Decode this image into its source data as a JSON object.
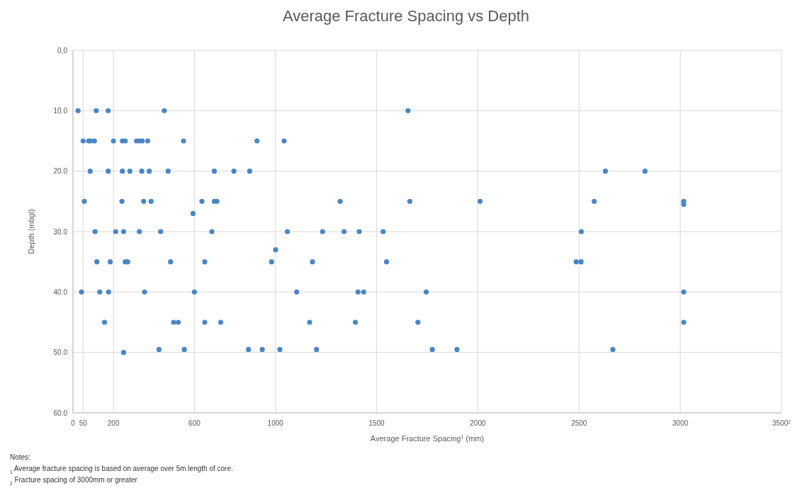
{
  "chart_data": {
    "type": "scatter",
    "title": "Average Fracture Spacing vs Depth",
    "xlabel": "Average Fracture Spacing$^{1}$ (mm)",
    "ylabel": "Depth (mbgl)",
    "annotations": [
      "Notes:",
      "$_{1}$ Average fracture spacing is based on average over 5m length of core.",
      "$_{2}$ Fracture spacing of 3000mm or greater"
    ],
    "xlim": [
      0,
      3500
    ],
    "xticks": [
      0,
      200,
      50,
      600,
      1000,
      1500,
      2000,
      2500,
      3000,
      {
        "value": 3500,
        "label": "3500$^{2}$"
      }
    ],
    "ylim": [
      60,
      0
    ],
    "yticks": [
      {
        "value": 0,
        "label": "0,0"
      },
      {
        "value": 10,
        "label": "10.0"
      },
      {
        "value": 20,
        "label": "20.0"
      },
      {
        "value": 30,
        "label": "30.0"
      },
      {
        "value": 40,
        "label": "40.0"
      },
      {
        "value": 50,
        "label": "50.0"
      },
      {
        "value": 60,
        "label": "60.0"
      }
    ],
    "grid": true,
    "marker": "circle",
    "series": [
      {
        "color": "#4a86c5",
        "x": [
          25,
          115,
          174,
          451,
          1655,
          50,
          77,
          86,
          106,
          200,
          244,
          258,
          314,
          328,
          342,
          369,
          546,
          909,
          1043,
          85,
          174,
          244,
          281,
          340,
          377,
          470,
          698,
          795,
          873,
          2630,
          2826,
          56,
          242,
          349,
          386,
          637,
          698,
          711,
          1320,
          1664,
          2011,
          2575,
          3017,
          3017,
          593,
          109,
          211,
          250,
          328,
          433,
          686,
          1059,
          1233,
          1339,
          1414,
          1532,
          2511,
          1001,
          118,
          184,
          258,
          270,
          482,
          651,
          981,
          1183,
          1549,
          2486,
          2510,
          42,
          132,
          176,
          354,
          600,
          1105,
          1408,
          1436,
          1745,
          3017,
          156,
          497,
          520,
          651,
          730,
          1169,
          1395,
          1704,
          3017,
          425,
          550,
          867,
          935,
          1022,
          1203,
          1775,
          1897,
          2667,
          250
        ],
        "values": [
          10,
          10,
          10,
          10,
          10,
          15,
          15,
          15,
          15,
          15,
          15,
          15,
          15,
          15,
          15,
          15,
          15,
          15,
          15,
          20,
          20,
          20,
          20,
          20,
          20,
          20,
          20,
          20,
          20,
          20,
          20,
          25,
          25,
          25,
          25,
          25,
          25,
          25,
          25,
          25,
          25,
          25,
          25,
          25.5,
          27,
          30,
          30,
          30,
          30,
          30,
          30,
          30,
          30,
          30,
          30,
          30,
          30,
          33,
          35,
          35,
          35,
          35,
          35,
          35,
          35,
          35,
          35,
          35,
          35,
          40,
          40,
          40,
          40,
          40,
          40,
          40,
          40,
          40,
          40,
          45,
          45,
          45,
          45,
          45,
          45,
          45,
          45,
          45,
          49.5,
          49.5,
          49.5,
          49.5,
          49.5,
          49.5,
          49.5,
          49.5,
          49.5,
          50
        ]
      }
    ]
  }
}
